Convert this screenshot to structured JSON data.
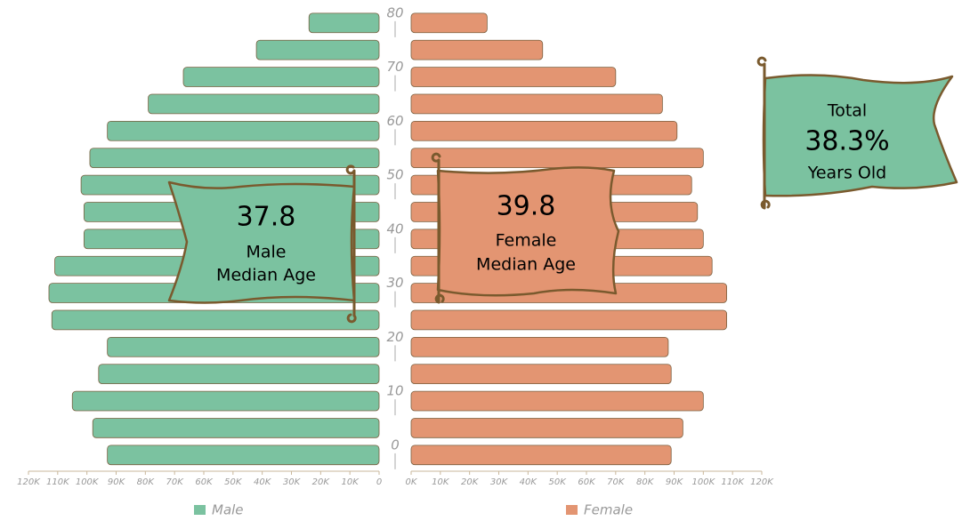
{
  "chart_data": {
    "type": "pyramid",
    "y": [
      0,
      5,
      10,
      15,
      20,
      25,
      30,
      35,
      40,
      45,
      50,
      55,
      60,
      65,
      70,
      75,
      80
    ],
    "ylim": [
      -4.8,
      80.8
    ],
    "yticks": [
      0,
      10,
      20,
      30,
      40,
      50,
      60,
      70,
      80
    ],
    "xlim": [
      0,
      120000
    ],
    "xticks": [
      0,
      {
        "value": 10000,
        "label": "10K"
      },
      {
        "value": 20000,
        "label": "20K"
      },
      {
        "value": 30000,
        "label": "30K"
      },
      {
        "value": 40000,
        "label": "40K"
      },
      {
        "value": 50000,
        "label": "50K"
      },
      {
        "value": 60000,
        "label": "60K"
      },
      {
        "value": 70000,
        "label": "70K"
      },
      {
        "value": 80000,
        "label": "80K"
      },
      {
        "value": 90000,
        "label": "90K"
      },
      {
        "value": 100000,
        "label": "100K"
      },
      {
        "value": 110000,
        "label": "110K"
      },
      {
        "value": 120000,
        "label": "120K"
      }
    ],
    "xticks_right": [
      {
        "value": 0,
        "label": "0K"
      },
      {
        "value": 10000,
        "label": "10K"
      },
      {
        "value": 20000,
        "label": "20K"
      },
      {
        "value": 30000,
        "label": "30K"
      },
      {
        "value": 40000,
        "label": "40K"
      },
      {
        "value": 50000,
        "label": "50K"
      },
      {
        "value": 60000,
        "label": "60K"
      },
      {
        "value": 70000,
        "label": "70K"
      },
      {
        "value": 80000,
        "label": "80K"
      },
      {
        "value": 90000,
        "label": "90K"
      },
      {
        "value": 100000,
        "label": "100K"
      },
      {
        "value": 110000,
        "label": "110K"
      },
      {
        "value": 120000,
        "label": "120K"
      }
    ],
    "series": [
      {
        "name": "Male",
        "color": "#7bc2a0",
        "values": [
          93000,
          98000,
          105000,
          96000,
          93000,
          112000,
          113000,
          111000,
          101000,
          101000,
          102000,
          99000,
          93000,
          79000,
          67000,
          42000,
          24000
        ]
      },
      {
        "name": "Female",
        "color": "#e39572",
        "values": [
          89000,
          93000,
          100000,
          89000,
          88000,
          108000,
          108000,
          103000,
          100000,
          98000,
          96000,
          100000,
          91000,
          86000,
          70000,
          45000,
          26000
        ]
      }
    ],
    "annotations": [
      {
        "lines": [
          "37.8",
          "Male",
          "Median Age"
        ]
      },
      {
        "lines": [
          "39.8",
          "Female",
          "Median Age"
        ]
      },
      {
        "lines": [
          "Total",
          "38.3%",
          "Years Old"
        ]
      }
    ]
  }
}
